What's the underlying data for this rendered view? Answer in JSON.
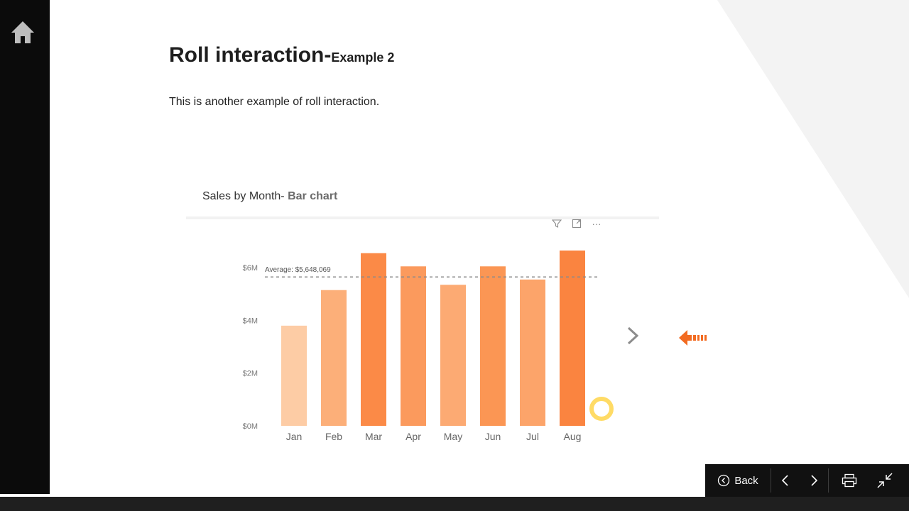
{
  "page": {
    "title_main": "Roll interaction-",
    "title_sub": "Example 2",
    "description": "This is another example of roll interaction."
  },
  "left_rail": {
    "home_icon": "home-icon"
  },
  "visual_header": {
    "icons": [
      "filter-icon",
      "focus-mode-icon",
      "more-options-icon"
    ],
    "more_glyph": "···"
  },
  "chart_data": {
    "type": "bar",
    "title": "Sales by Month- ",
    "title_emphasis": "Bar chart",
    "categories": [
      "Jan",
      "Feb",
      "Mar",
      "Apr",
      "May",
      "Jun",
      "Jul",
      "Aug"
    ],
    "values": [
      3800000,
      5150000,
      6550000,
      6050000,
      5350000,
      6050000,
      5550000,
      6650000
    ],
    "bar_colors": [
      "#fdcca5",
      "#fcaf79",
      "#fb8a47",
      "#fb9a5d",
      "#fcaa73",
      "#fb9654",
      "#fca46a",
      "#fa8440"
    ],
    "y_ticks": [
      "$0M",
      "$2M",
      "$4M",
      "$6M"
    ],
    "y_tick_values": [
      0,
      2000000,
      4000000,
      6000000
    ],
    "ylim": [
      0,
      6650000
    ],
    "average": {
      "label": "Average: $5,648,069",
      "value": 5648069
    },
    "grid": false,
    "xlabel": "",
    "ylabel": ""
  },
  "nav_bar": {
    "back_label": "Back",
    "icons": [
      "back-circle-icon",
      "previous-page-icon",
      "next-page-icon",
      "print-icon",
      "collapse-icon"
    ]
  },
  "colors": {
    "accent": "#f26b21",
    "rail": "#0b0b0b",
    "nav_bar": "#111111"
  }
}
